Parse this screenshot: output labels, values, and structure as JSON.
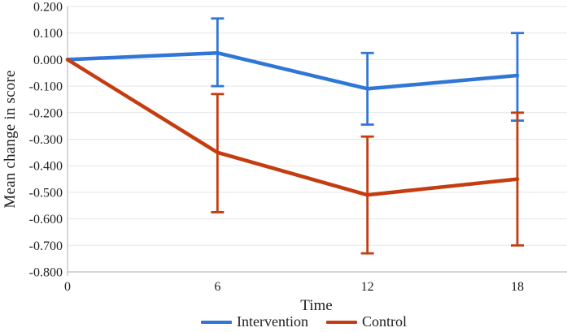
{
  "chart_data": {
    "type": "line",
    "title": "",
    "xlabel": "Time",
    "ylabel": "Mean change in score",
    "x": [
      0,
      6,
      12,
      18
    ],
    "x_tick_labels": [
      "0",
      "6",
      "12",
      "18"
    ],
    "y_tick_labels": [
      "0.200",
      "0.100",
      "0.000",
      "-0.100",
      "-0.200",
      "-0.300",
      "-0.400",
      "-0.500",
      "-0.600",
      "-0.700",
      "-0.800"
    ],
    "ylim": [
      -0.8,
      0.2
    ],
    "y_tick_step": 0.1,
    "grid": "horizontal",
    "legend_position": "bottom-center",
    "error_bars": true,
    "series": [
      {
        "name": "Intervention",
        "color": "#2F76D7",
        "values": [
          0.0,
          0.025,
          -0.11,
          -0.06
        ],
        "error_bars": [
          null,
          [
            -0.1,
            0.155
          ],
          [
            -0.245,
            0.025
          ],
          [
            -0.23,
            0.1
          ]
        ]
      },
      {
        "name": "Control",
        "color": "#C43D11",
        "values": [
          0.0,
          -0.35,
          -0.51,
          -0.45
        ],
        "error_bars": [
          null,
          [
            -0.575,
            -0.13
          ],
          [
            -0.73,
            -0.29
          ],
          [
            -0.7,
            -0.2
          ]
        ]
      }
    ]
  },
  "colors": {
    "grid": "#E3E7E7",
    "axis": "#BDBDBD",
    "text": "#1F1F1F"
  }
}
